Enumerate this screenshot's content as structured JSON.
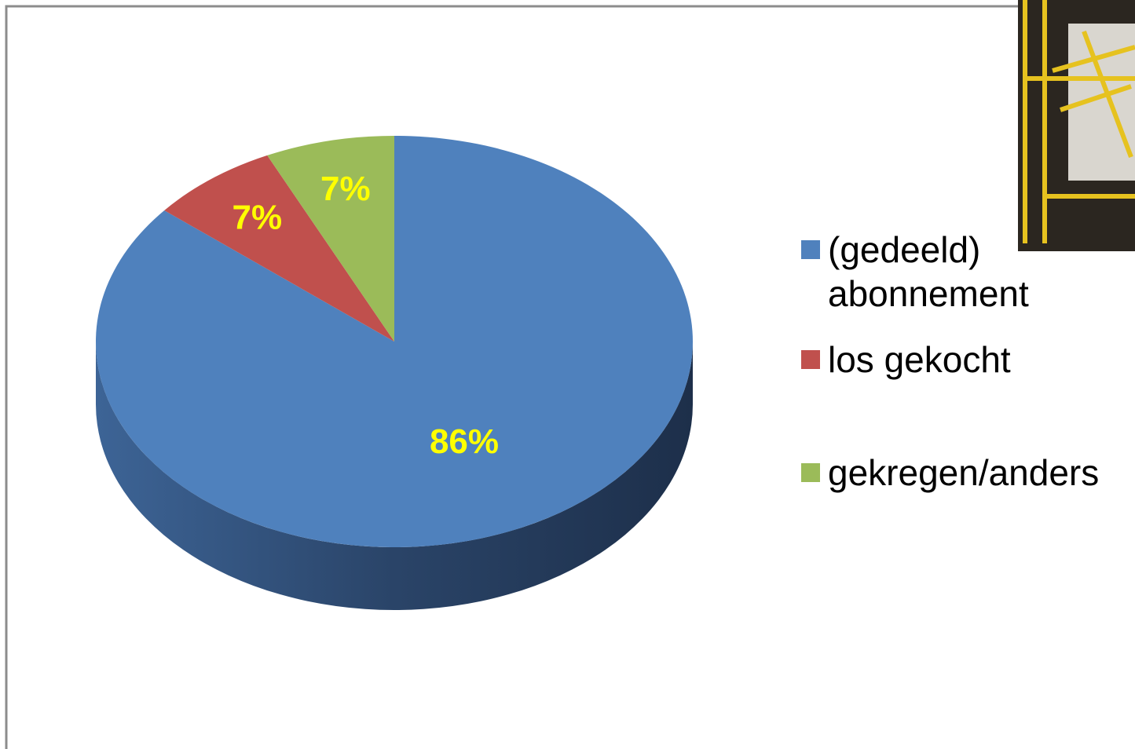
{
  "chart_data": {
    "type": "pie",
    "categories": [
      "(gedeeld) abonnement",
      "los gekocht",
      "gekregen/anders"
    ],
    "values": [
      86,
      7,
      7
    ],
    "value_labels": [
      "86%",
      "7%",
      "7%"
    ],
    "colors": [
      "#4f81bd",
      "#c0504d",
      "#9bbb59"
    ]
  }
}
